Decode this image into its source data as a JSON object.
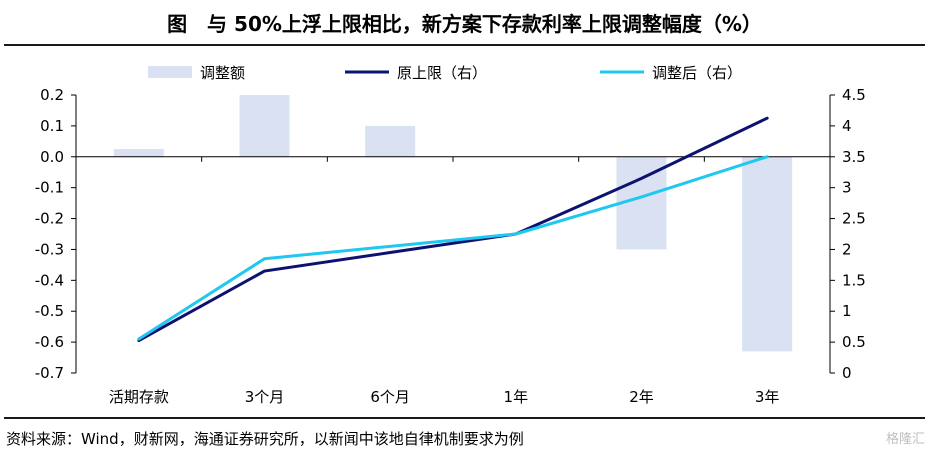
{
  "title": "图　与 50%上浮上限相比，新方案下存款利率上限调整幅度（%）",
  "source": "资料来源：Wind，财新网，海通证券研究所，以新闻中该地自律机制要求为例",
  "watermark": "格隆汇",
  "chart_data": {
    "type": "bar+line",
    "categories": [
      "活期存款",
      "3个月",
      "6个月",
      "1年",
      "2年",
      "3年"
    ],
    "legend_position": "top",
    "grid": false,
    "left_axis": {
      "ylim": [
        -0.7,
        0.2
      ],
      "ticks": [
        "0.2",
        "0.1",
        "0.0",
        "-0.1",
        "-0.2",
        "-0.3",
        "-0.4",
        "-0.5",
        "-0.6",
        "-0.7"
      ]
    },
    "right_axis": {
      "ylim": [
        0,
        4.5
      ],
      "ticks": [
        "4.5",
        "4",
        "3.5",
        "3",
        "2.5",
        "2",
        "1.5",
        "1",
        "0.5",
        "0"
      ]
    },
    "series": [
      {
        "name": "调整额",
        "type": "bar",
        "axis": "left",
        "color": "#d9e1f2",
        "values": [
          0.025,
          0.2,
          0.1,
          0.0,
          -0.3,
          -0.63
        ]
      },
      {
        "name": "原上限（右）",
        "type": "line",
        "axis": "right",
        "color": "#0d1270",
        "values": [
          0.525,
          1.65,
          1.95,
          2.25,
          3.15,
          4.125
        ]
      },
      {
        "name": "调整后（右）",
        "type": "line",
        "axis": "right",
        "color": "#1ec8f0",
        "values": [
          0.55,
          1.85,
          2.05,
          2.25,
          2.85,
          3.5
        ]
      }
    ]
  }
}
